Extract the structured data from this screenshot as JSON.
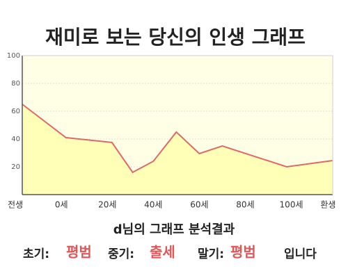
{
  "chart_data": {
    "type": "area",
    "title": "재미로 보는 당신의 인생 그래프",
    "x": [
      -17,
      2,
      22,
      31,
      40,
      50,
      60,
      70,
      98,
      118
    ],
    "values": [
      65,
      41,
      37.5,
      16,
      24,
      45,
      29.5,
      35,
      20,
      24.5
    ],
    "color": "#e06868",
    "fill": "#ffffb8",
    "background": "#ffffe6",
    "xlim": [
      -17,
      118
    ],
    "xticks": [
      {
        "value": -20,
        "label": "전생"
      },
      {
        "value": 0,
        "label": "0세"
      },
      {
        "value": 20,
        "label": "20세"
      },
      {
        "value": 40,
        "label": "40세"
      },
      {
        "value": 60,
        "label": "60세"
      },
      {
        "value": 80,
        "label": "80세"
      },
      {
        "value": 100,
        "label": "100세"
      },
      {
        "value": 116,
        "label": "환생"
      }
    ],
    "ylim": [
      0,
      100
    ],
    "yticks": [
      20,
      40,
      60,
      80,
      100
    ],
    "grid": true
  },
  "analysis": {
    "title": "d님의 그래프 분석결과",
    "early_label": "초기:",
    "early": "평범",
    "middle_label": "중기:",
    "middle": "출세",
    "late_label": "말기:",
    "late": "평범",
    "ending": "입니다"
  }
}
